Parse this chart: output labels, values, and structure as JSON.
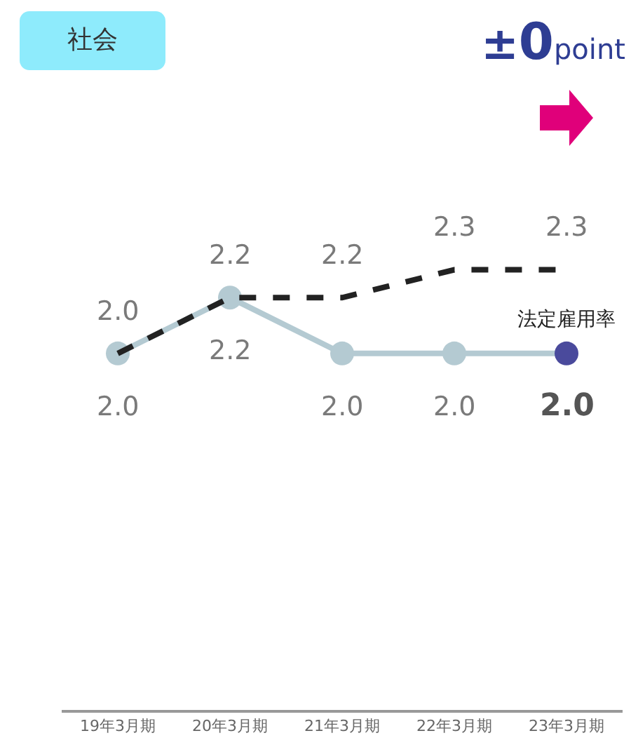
{
  "chart_data": {
    "type": "line",
    "title": "社会",
    "annotations": [
      "±0point"
    ],
    "categories": [
      "19年3月期",
      "20年3月期",
      "21年3月期",
      "22年3月期",
      "23年3月期"
    ],
    "series": [
      {
        "color": "#b4cad2",
        "colors": [
          "#b4cad2",
          "#b4cad2",
          "#b4cad2",
          "#b4cad2",
          "#4a4a9c"
        ],
        "values": [
          2.0,
          2.2,
          2.0,
          2.0,
          2.0
        ],
        "value_labels": [
          "2.0",
          "2.2",
          "2.0",
          "2.0",
          "2.0"
        ],
        "marker": "circle",
        "line_style": "solid"
      },
      {
        "name": "法定雇用率",
        "color": "#222222",
        "values": [
          2.0,
          2.2,
          2.2,
          2.3,
          2.3
        ],
        "value_labels": [
          "2.0",
          "2.2",
          "2.2",
          "2.3",
          "2.3"
        ],
        "marker": "none",
        "line_style": "dashed"
      }
    ],
    "legend": false,
    "grid": false
  }
}
